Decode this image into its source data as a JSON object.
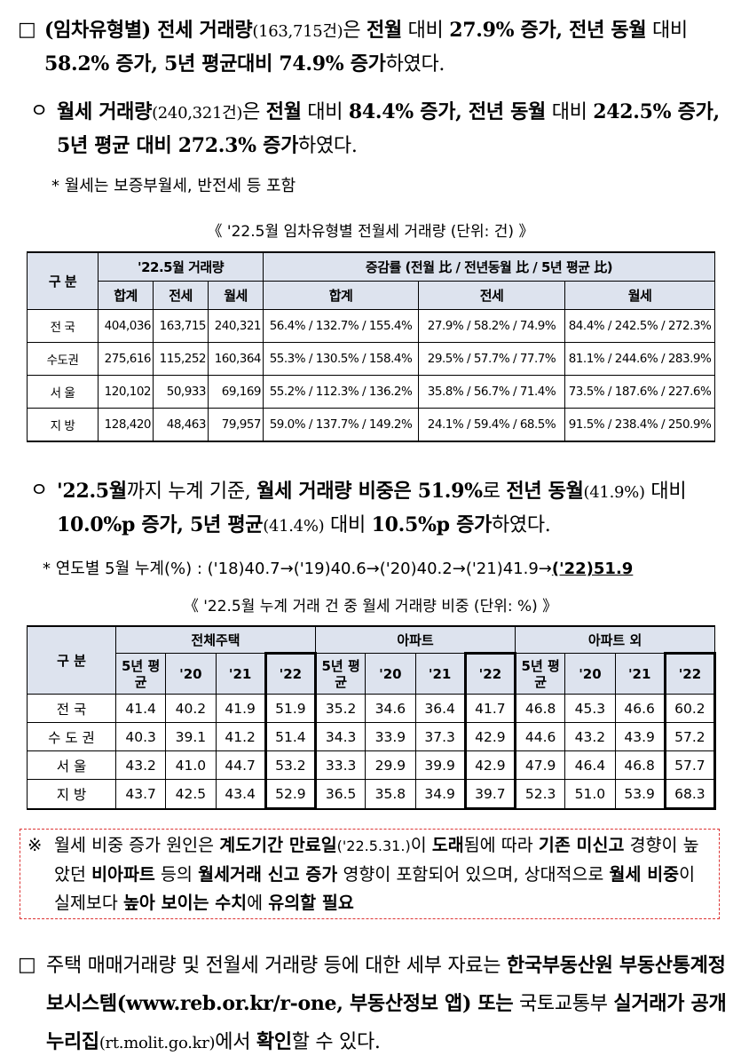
{
  "para1": {
    "marker": "□",
    "segments": [
      "(임차유형별) 전세 거래량",
      "(163,715건)",
      "은 ",
      "전월",
      " 대비 ",
      "27.9% 증가, 전년 동월",
      " 대비 ",
      "58.2% 증가, 5년 평균대비 74.9% 증가",
      "하였다."
    ]
  },
  "para2": {
    "marker": "ㅇ",
    "segments": [
      "월세 거래량",
      "(240,321건)",
      "은 ",
      "전월",
      " 대비 ",
      "84.4% 증가, 전년 동월",
      " 대비 ",
      "242.5% 증가, 5년 평균 대비 272.3% 증가",
      "하였다."
    ]
  },
  "note1": {
    "marker": "*",
    "text": "월세는 보증부월세, 반전세 등 포함"
  },
  "table1": {
    "title": "《 '22.5월 임차유형별 전월세 거래량 (단위: 건) 》",
    "header_top": [
      "구 분",
      "'22.5월 거래량",
      "증감률 (전월 比 / 전년동월 比 / 5년 평균 比)"
    ],
    "header_sub": [
      "합계",
      "전세",
      "월세",
      "합계",
      "전세",
      "월세"
    ],
    "rows": [
      [
        "전 국",
        "404,036",
        "163,715",
        "240,321",
        "56.4% / 132.7% / 155.4%",
        "27.9% / 58.2% / 74.9%",
        "84.4% / 242.5% / 272.3%"
      ],
      [
        "수도권",
        "275,616",
        "115,252",
        "160,364",
        "55.3% / 130.5% / 158.4%",
        "29.5% / 57.7% / 77.7%",
        "81.1% / 244.6% / 283.9%"
      ],
      [
        "서 울",
        "120,102",
        "50,933",
        "69,169",
        "55.2% / 112.3% / 136.2%",
        "35.8% / 56.7% / 71.4%",
        "73.5% / 187.6% / 227.6%"
      ],
      [
        "지 방",
        "128,420",
        "48,463",
        "79,957",
        "59.0% / 137.7% / 149.2%",
        "24.1% / 59.4% / 68.5%",
        "91.5% / 238.4% / 250.9%"
      ]
    ]
  },
  "para3": {
    "marker": "ㅇ",
    "segments": [
      "'22.5월",
      "까지 누계 기준, ",
      "월세 거래량 비중은 51.9%",
      "로 ",
      "전년 동월",
      "(41.9%)",
      " 대비 ",
      "10.0%p 증가, 5년 평균",
      "(41.4%)",
      " 대비 ",
      "10.5%p 증가",
      "하였다."
    ]
  },
  "note2": {
    "marker": "*",
    "text": "연도별 5월 누계(%) : ('18)40.7→('19)40.6→('20)40.2→('21)41.9→",
    "highlight": "('22)51.9"
  },
  "table2": {
    "title": "《 '22.5월 누계 거래 건 중 월세 거래량 비중 (단위: %) 》",
    "header_top": [
      "구 분",
      "전체주택",
      "아파트",
      "아파트 외"
    ],
    "header_sub": [
      "5년 평균",
      "'20",
      "'21",
      "'22",
      "5년 평균",
      "'20",
      "'21",
      "'22",
      "5년 평균",
      "'20",
      "'21",
      "'22"
    ],
    "rows": [
      [
        "전 국",
        "41.4",
        "40.2",
        "41.9",
        "51.9",
        "35.2",
        "34.6",
        "36.4",
        "41.7",
        "46.8",
        "45.3",
        "46.6",
        "60.2"
      ],
      [
        "수 도 권",
        "40.3",
        "39.1",
        "41.2",
        "51.4",
        "34.3",
        "33.9",
        "37.3",
        "42.9",
        "44.6",
        "43.2",
        "43.9",
        "57.2"
      ],
      [
        "서 울",
        "43.2",
        "41.0",
        "44.7",
        "53.2",
        "33.3",
        "29.9",
        "39.9",
        "42.9",
        "47.9",
        "46.4",
        "46.8",
        "57.7"
      ],
      [
        "지 방",
        "43.7",
        "42.5",
        "43.4",
        "52.9",
        "36.5",
        "35.8",
        "34.9",
        "39.7",
        "52.3",
        "51.0",
        "53.9",
        "68.3"
      ]
    ]
  },
  "notice": {
    "marker": "※",
    "segments": [
      "월세 비중 증가 원인은 ",
      "계도기간 만료일",
      "('22.5.31.)",
      "이 ",
      "도래",
      "됨에 따라 ",
      "기존 미신고",
      " 경향이 높았던 ",
      "비아파트",
      " 등의 ",
      "월세거래 신고 증가",
      " 영향이 포함되어 있으며, 상대적으로 ",
      "월세 비중",
      "이 실제보다 ",
      "높아 보이는 수치",
      "에 ",
      "유의할 필요"
    ]
  },
  "para4": {
    "marker": "□",
    "segments": [
      "주택 매매거래량 및 전월세 거래량 등에 대한 세부 자료는 ",
      "한국부동산원 부동산통계정보시스템(www.reb.or.kr/r-one, 부동산정보 앱) 또는",
      " 국토교통부 ",
      "실거래가 공개 누리집",
      "(rt.molit.go.kr)",
      "에서 ",
      "확인",
      "할 수 있다."
    ]
  }
}
